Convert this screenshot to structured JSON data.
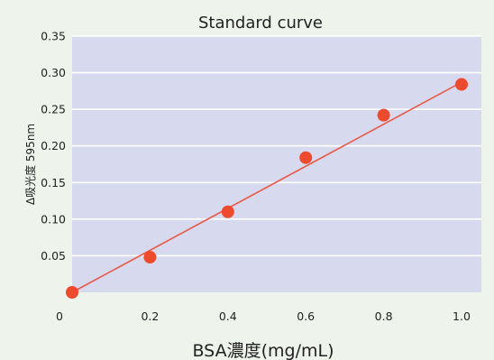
{
  "chart_data": {
    "type": "scatter",
    "title": "Standard curve",
    "xlabel": "BSA濃度(mg/mL)",
    "ylabel": "Δ吸光度 595nm",
    "xlim": [
      0,
      1.0
    ],
    "ylim": [
      0,
      0.35
    ],
    "x_ticks": [
      "0",
      "0.2",
      "0.4",
      "0.6",
      "0.8",
      "1.0"
    ],
    "y_ticks": [
      "0.05",
      "0.10",
      "0.15",
      "0.20",
      "0.25",
      "0.30",
      "0.35"
    ],
    "grid": true,
    "legend": "none",
    "series": [
      {
        "x": [
          0.0,
          0.2,
          0.4,
          0.6,
          0.8,
          1.0
        ],
        "y": [
          0.0,
          0.048,
          0.11,
          0.184,
          0.242,
          0.284
        ],
        "color": "#ee4a2e"
      }
    ],
    "fit_line": {
      "x": [
        0.0,
        1.0
      ],
      "y": [
        0.0,
        0.287
      ],
      "color": "#e85a48"
    },
    "plot_background": "#d7d9ee",
    "gridline_color": "#ffffff"
  }
}
